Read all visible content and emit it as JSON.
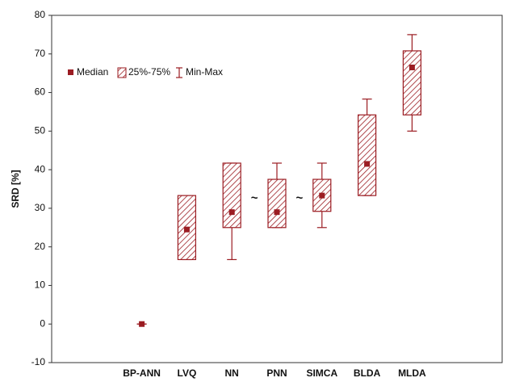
{
  "chart_data": {
    "type": "box",
    "y_label": "SRD [%]",
    "categories": [
      null,
      "BP-ANN",
      "LVQ",
      "NN",
      "PNN",
      "SIMCA",
      "BLDA",
      "MLDA",
      null
    ],
    "color": "#9b1c22",
    "median": {
      "name": "Median",
      "values": [
        null,
        0,
        24.5,
        29,
        29,
        33.3,
        41.5,
        66.5,
        null
      ]
    },
    "box": {
      "name": "25%-75%",
      "q1": [
        null,
        0,
        16.7,
        25,
        25,
        29.2,
        33.3,
        54.2,
        null
      ],
      "q3": [
        null,
        0,
        33.3,
        41.7,
        37.5,
        37.5,
        54.2,
        70.8,
        null
      ]
    },
    "whisker": {
      "name": "Min-Max",
      "min": [
        null,
        0,
        16.7,
        16.7,
        25,
        25,
        33.3,
        50,
        null
      ],
      "max": [
        null,
        0,
        33.3,
        41.7,
        41.7,
        41.7,
        58.3,
        75,
        null
      ]
    },
    "annotations": [
      "~",
      "~"
    ],
    "ylim": [
      -10,
      80
    ],
    "yticks": [
      -10,
      0,
      10,
      20,
      30,
      40,
      50,
      60,
      70,
      80
    ]
  }
}
